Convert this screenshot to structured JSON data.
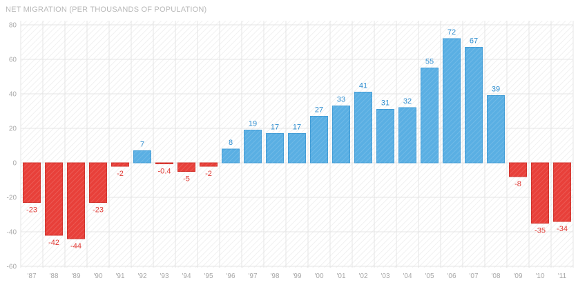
{
  "chart_data": {
    "type": "bar",
    "title": "NET MIGRATION (PER THOUSANDS OF POPULATION)",
    "xlabel": "",
    "ylabel": "",
    "ylim": [
      -60,
      80
    ],
    "yticks": [
      80,
      60,
      40,
      20,
      0,
      -20,
      -40,
      -60
    ],
    "ytick_labels": [
      "80",
      "60",
      "40",
      "20",
      "0",
      "-20",
      "-40",
      "-60"
    ],
    "grid": true,
    "legend": "none",
    "categories": [
      "'87",
      "'88",
      "'89",
      "'90",
      "'91",
      "'92",
      "'93",
      "'94",
      "'95",
      "'96",
      "'97",
      "'98",
      "'99",
      "'00",
      "'01",
      "'02",
      "'03",
      "'04",
      "'05",
      "'06",
      "'07",
      "'08",
      "'09",
      "'10",
      "'11"
    ],
    "values": [
      -23,
      -42,
      -44,
      -23,
      -2,
      7,
      -0.4,
      -5,
      -2,
      8,
      19,
      17,
      17,
      27,
      33,
      41,
      31,
      32,
      55,
      72,
      67,
      39,
      -8,
      -35,
      -34
    ],
    "value_labels": [
      "-23",
      "-42",
      "-44",
      "-23",
      "-2",
      "7",
      "-0.4",
      "-5",
      "-2",
      "8",
      "19",
      "17",
      "17",
      "27",
      "33",
      "41",
      "31",
      "32",
      "55",
      "72",
      "67",
      "39",
      "-8",
      "-35",
      "-34"
    ],
    "colors": {
      "positive": "#5aafe3",
      "positive_stroke": "#3f9bd5",
      "negative": "#e8403a",
      "negative_stroke": "#d0302a",
      "positive_label": "#2f8ed0",
      "negative_label": "#e03a34",
      "grid": "#e4e4e4",
      "axis_label": "#a8a8a8"
    }
  }
}
